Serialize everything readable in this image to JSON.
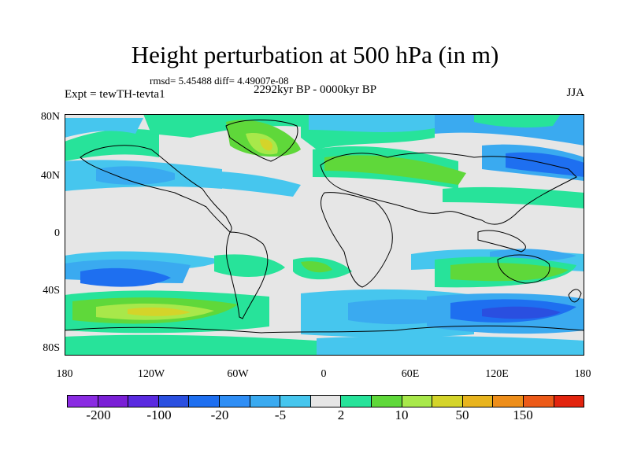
{
  "title": "Height perturbation at 500 hPa (in m)",
  "stats": "rmsd= 5.45488 diff= 4.49007e-08",
  "experiment": "Expt = tewTH-tevta1",
  "period": "2292kyr BP - 0000kyr BP",
  "season": "JJA",
  "lat_ticks": [
    "80N",
    "40N",
    "0",
    "40S",
    "80S"
  ],
  "lon_ticks": [
    "180",
    "120W",
    "60W",
    "0",
    "60E",
    "120E",
    "180"
  ],
  "colorbar": {
    "colors": [
      "#8a2be2",
      "#7a1fd6",
      "#5a2ae0",
      "#2a4fe0",
      "#1e6ff0",
      "#2f8ef5",
      "#3aaaf0",
      "#46c6ee",
      "#e6e6e6",
      "#27e39a",
      "#5fd83a",
      "#a8e84a",
      "#d4d42a",
      "#e8b41e",
      "#ee8e1a",
      "#ec5a18",
      "#e2240e"
    ],
    "labels": [
      "-200",
      "-100",
      "-20",
      "-5",
      "2",
      "10",
      "50",
      "150"
    ]
  }
}
